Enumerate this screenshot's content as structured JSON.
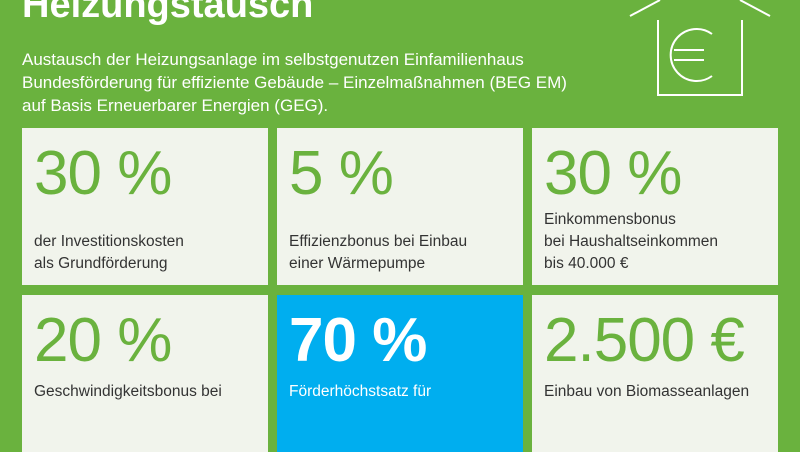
{
  "header": {
    "title": "Heizungstausch",
    "subtitle": [
      "Austausch der Heizungsanlage im selbstgenutzen Einfamilienhaus",
      "Bundesförderung für effiziente Gebäude – Einzelmaßnahmen (BEG EM)",
      "auf Basis Erneuerbarer Energien (GEG)."
    ]
  },
  "cards": [
    {
      "value": "30 %",
      "text": [
        "der Investitionskosten",
        "als Grundförderung"
      ]
    },
    {
      "value": "5 %",
      "text": [
        "Effizienzbonus bei Einbau",
        "einer Wärmepumpe"
      ]
    },
    {
      "value": "30 %",
      "text": [
        "Einkommensbonus",
        "bei Haushaltseinkommen",
        "bis 40.000 €"
      ]
    },
    {
      "value": "20 %",
      "text": [
        "Geschwindigkeitsbonus bei"
      ]
    },
    {
      "value": "70 %",
      "text": [
        "Förderhöchstsatz für"
      ]
    },
    {
      "value": "2.500 €",
      "text": [
        "Einbau von Biomasseanlagen"
      ]
    }
  ]
}
